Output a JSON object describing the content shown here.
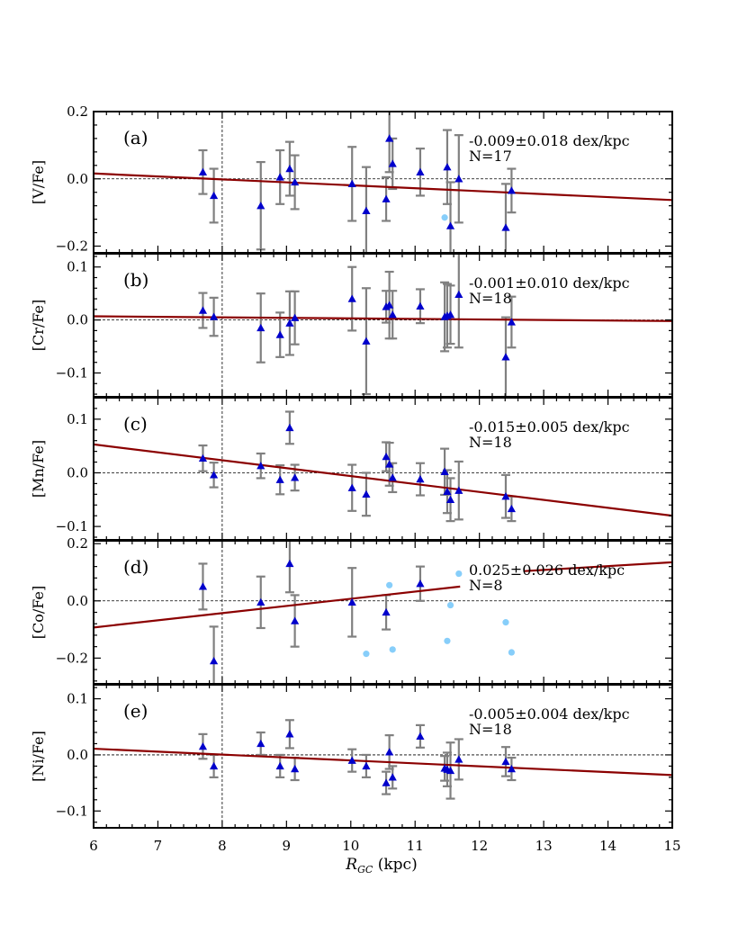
{
  "chart_data": {
    "type": "scatter",
    "xlabel": "R_GC (kpc)",
    "xlabel_main": "R",
    "xlabel_sub": "GC",
    "xlabel_unit": " (kpc)",
    "xlim": [
      6,
      15
    ],
    "xticks": [
      "6",
      "7",
      "8",
      "9",
      "10",
      "11",
      "12",
      "13",
      "14",
      "15"
    ],
    "solar_radius": 8,
    "colors": {
      "triangle": "#0000cc",
      "errorbar": "#808080",
      "fit_line": "#8b0000",
      "excluded_point": "#87cefa",
      "axis": "#000000"
    },
    "panels": [
      {
        "tag": "(a)",
        "ylabel": "[V/Fe]",
        "ylim": [
          -0.22,
          0.2
        ],
        "yticks": [
          -0.2,
          0.0,
          0.2
        ],
        "ytick_labels": [
          "−0.2",
          "0.0",
          "0.2"
        ],
        "slope_text": "-0.009±0.018 dex/kpc",
        "n_text": "N=17",
        "fit": {
          "x": [
            6,
            15
          ],
          "y": [
            0.016,
            -0.063
          ]
        },
        "points": [
          {
            "x": 7.7,
            "y": 0.02,
            "err": 0.065
          },
          {
            "x": 7.87,
            "y": -0.05,
            "err": 0.08
          },
          {
            "x": 8.6,
            "y": -0.08,
            "err": 0.13
          },
          {
            "x": 8.9,
            "y": 0.005,
            "err": 0.08
          },
          {
            "x": 9.05,
            "y": 0.03,
            "err": 0.08
          },
          {
            "x": 9.13,
            "y": -0.01,
            "err": 0.08
          },
          {
            "x": 10.02,
            "y": -0.015,
            "err": 0.11
          },
          {
            "x": 10.24,
            "y": -0.095,
            "err": 0.13
          },
          {
            "x": 10.55,
            "y": -0.06,
            "err": 0.065
          },
          {
            "x": 10.6,
            "y": 0.12,
            "err": 0.1
          },
          {
            "x": 10.65,
            "y": 0.045,
            "err": 0.075
          },
          {
            "x": 11.08,
            "y": 0.02,
            "err": 0.07
          },
          {
            "x": 11.5,
            "y": 0.035,
            "err": 0.11
          },
          {
            "x": 11.55,
            "y": -0.14,
            "err": 0.13
          },
          {
            "x": 11.68,
            "y": 0.0,
            "err": 0.13
          },
          {
            "x": 12.41,
            "y": -0.145,
            "err": 0.13
          },
          {
            "x": 12.5,
            "y": -0.035,
            "err": 0.065
          }
        ],
        "excluded": [
          {
            "x": 11.46,
            "y": -0.115
          }
        ]
      },
      {
        "tag": "(b)",
        "ylabel": "[Cr/Fe]",
        "ylim": [
          -0.145,
          0.125
        ],
        "yticks": [
          -0.1,
          0.0,
          0.1
        ],
        "ytick_labels": [
          "−0.1",
          "0.0",
          "0.1"
        ],
        "slope_text": "-0.001±0.010 dex/kpc",
        "n_text": "N=18",
        "fit": {
          "x": [
            6,
            15
          ],
          "y": [
            0.007,
            -0.002
          ]
        },
        "points": [
          {
            "x": 7.7,
            "y": 0.018,
            "err": 0.033
          },
          {
            "x": 7.87,
            "y": 0.006,
            "err": 0.036
          },
          {
            "x": 8.6,
            "y": -0.015,
            "err": 0.065
          },
          {
            "x": 8.9,
            "y": -0.028,
            "err": 0.042
          },
          {
            "x": 9.05,
            "y": -0.006,
            "err": 0.06
          },
          {
            "x": 9.13,
            "y": 0.004,
            "err": 0.05
          },
          {
            "x": 10.02,
            "y": 0.04,
            "err": 0.06
          },
          {
            "x": 10.24,
            "y": -0.04,
            "err": 0.1
          },
          {
            "x": 10.55,
            "y": 0.025,
            "err": 0.03
          },
          {
            "x": 10.6,
            "y": 0.028,
            "err": 0.063
          },
          {
            "x": 10.65,
            "y": 0.01,
            "err": 0.045
          },
          {
            "x": 11.08,
            "y": 0.026,
            "err": 0.032
          },
          {
            "x": 11.46,
            "y": 0.006,
            "err": 0.065
          },
          {
            "x": 11.5,
            "y": 0.008,
            "err": 0.06
          },
          {
            "x": 11.55,
            "y": 0.01,
            "err": 0.055
          },
          {
            "x": 11.68,
            "y": 0.048,
            "err": 0.1
          },
          {
            "x": 12.41,
            "y": -0.07,
            "err": 0.075
          },
          {
            "x": 12.5,
            "y": -0.004,
            "err": 0.048
          }
        ],
        "excluded": []
      },
      {
        "tag": "(c)",
        "ylabel": "[Mn/Fe]",
        "ylim": [
          -0.125,
          0.14
        ],
        "yticks": [
          -0.1,
          0.0,
          0.1
        ],
        "ytick_labels": [
          "−0.1",
          "0.0",
          "0.1"
        ],
        "slope_text": "-0.015±0.005 dex/kpc",
        "n_text": "N=18",
        "fit": {
          "x": [
            6,
            15
          ],
          "y": [
            0.053,
            -0.08
          ]
        },
        "points": [
          {
            "x": 7.7,
            "y": 0.027,
            "err": 0.024
          },
          {
            "x": 7.87,
            "y": -0.004,
            "err": 0.023
          },
          {
            "x": 8.6,
            "y": 0.013,
            "err": 0.023
          },
          {
            "x": 8.9,
            "y": -0.013,
            "err": 0.027
          },
          {
            "x": 9.05,
            "y": 0.084,
            "err": 0.03
          },
          {
            "x": 9.13,
            "y": -0.009,
            "err": 0.024
          },
          {
            "x": 10.02,
            "y": -0.028,
            "err": 0.043
          },
          {
            "x": 10.24,
            "y": -0.04,
            "err": 0.04
          },
          {
            "x": 10.55,
            "y": 0.03,
            "err": 0.027
          },
          {
            "x": 10.6,
            "y": 0.016,
            "err": 0.04
          },
          {
            "x": 10.65,
            "y": -0.009,
            "err": 0.027
          },
          {
            "x": 11.08,
            "y": -0.012,
            "err": 0.03
          },
          {
            "x": 11.46,
            "y": 0.002,
            "err": 0.043
          },
          {
            "x": 11.5,
            "y": -0.035,
            "err": 0.04
          },
          {
            "x": 11.55,
            "y": -0.05,
            "err": 0.04
          },
          {
            "x": 11.68,
            "y": -0.033,
            "err": 0.054
          },
          {
            "x": 12.41,
            "y": -0.044,
            "err": 0.04
          },
          {
            "x": 12.5,
            "y": -0.067,
            "err": 0.023
          }
        ],
        "excluded": []
      },
      {
        "tag": "(d)",
        "ylabel": "[Co/Fe]",
        "ylim": [
          -0.29,
          0.21
        ],
        "yticks": [
          -0.2,
          0.0,
          0.2
        ],
        "ytick_labels": [
          "−0.2",
          "0.0",
          "0.2"
        ],
        "slope_text": "0.025±0.026 dex/kpc",
        "n_text": "N=8",
        "fit": {
          "x": [
            6,
            11.7
          ],
          "y": [
            -0.093,
            0.05
          ]
        },
        "fit2": {
          "x": [
            12.7,
            15
          ],
          "y": [
            0.104,
            0.135
          ]
        },
        "points": [
          {
            "x": 7.7,
            "y": 0.05,
            "err": 0.08
          },
          {
            "x": 7.87,
            "y": -0.21,
            "err": 0.12
          },
          {
            "x": 8.6,
            "y": -0.005,
            "err": 0.09
          },
          {
            "x": 9.05,
            "y": 0.13,
            "err": 0.1
          },
          {
            "x": 9.13,
            "y": -0.07,
            "err": 0.09
          },
          {
            "x": 10.02,
            "y": -0.005,
            "err": 0.12
          },
          {
            "x": 10.55,
            "y": -0.04,
            "err": 0.06
          },
          {
            "x": 11.08,
            "y": 0.06,
            "err": 0.06
          }
        ],
        "excluded": [
          {
            "x": 10.24,
            "y": -0.185
          },
          {
            "x": 10.6,
            "y": 0.055
          },
          {
            "x": 10.65,
            "y": -0.17
          },
          {
            "x": 11.5,
            "y": -0.14
          },
          {
            "x": 11.55,
            "y": -0.015
          },
          {
            "x": 11.68,
            "y": 0.095
          },
          {
            "x": 12.41,
            "y": -0.075
          },
          {
            "x": 12.5,
            "y": -0.18
          }
        ]
      },
      {
        "tag": "(e)",
        "ylabel": "[Ni/Fe]",
        "ylim": [
          -0.13,
          0.125
        ],
        "yticks": [
          -0.1,
          0.0,
          0.1
        ],
        "ytick_labels": [
          "−0.1",
          "0.0",
          "0.1"
        ],
        "slope_text": "-0.005±0.004 dex/kpc",
        "n_text": "N=18",
        "fit": {
          "x": [
            6,
            15
          ],
          "y": [
            0.011,
            -0.036
          ]
        },
        "points": [
          {
            "x": 7.7,
            "y": 0.015,
            "err": 0.022
          },
          {
            "x": 7.87,
            "y": -0.02,
            "err": 0.02
          },
          {
            "x": 8.6,
            "y": 0.02,
            "err": 0.02
          },
          {
            "x": 8.9,
            "y": -0.02,
            "err": 0.02
          },
          {
            "x": 9.05,
            "y": 0.037,
            "err": 0.025
          },
          {
            "x": 9.13,
            "y": -0.025,
            "err": 0.02
          },
          {
            "x": 10.02,
            "y": -0.01,
            "err": 0.02
          },
          {
            "x": 10.24,
            "y": -0.02,
            "err": 0.02
          },
          {
            "x": 10.55,
            "y": -0.05,
            "err": 0.02
          },
          {
            "x": 10.6,
            "y": 0.005,
            "err": 0.03
          },
          {
            "x": 10.65,
            "y": -0.04,
            "err": 0.02
          },
          {
            "x": 11.08,
            "y": 0.033,
            "err": 0.02
          },
          {
            "x": 11.46,
            "y": -0.024,
            "err": 0.022
          },
          {
            "x": 11.5,
            "y": -0.026,
            "err": 0.03
          },
          {
            "x": 11.55,
            "y": -0.028,
            "err": 0.05
          },
          {
            "x": 11.68,
            "y": -0.008,
            "err": 0.036
          },
          {
            "x": 12.41,
            "y": -0.012,
            "err": 0.026
          },
          {
            "x": 12.5,
            "y": -0.025,
            "err": 0.02
          }
        ],
        "excluded": []
      }
    ]
  }
}
